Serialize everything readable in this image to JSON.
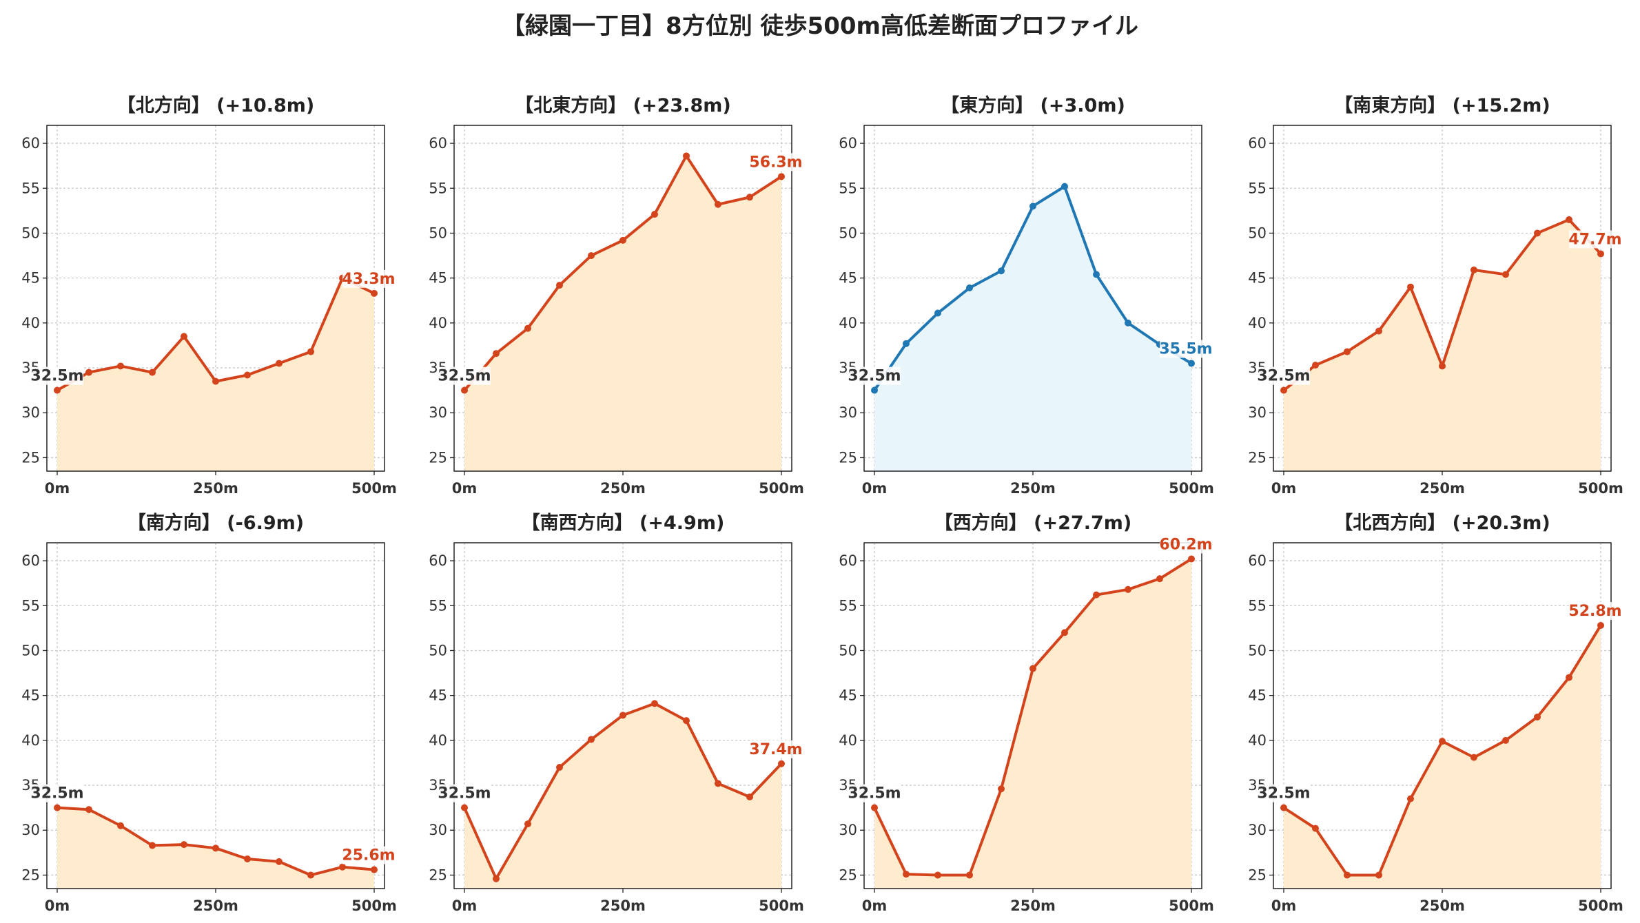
{
  "title": "【緑園一丁目】8方位別 徒歩500m高低差断面プロファイル",
  "colors": {
    "up_line": "#d4441c",
    "up_fill": "#ffeccf",
    "flat_line": "#1f77b4",
    "flat_fill": "#e8f5fb",
    "start_label": "#333333",
    "grid": "#c8c8c8"
  },
  "chart_data": [
    {
      "type": "area",
      "title": "【北方向】 (+10.8m)",
      "style": "up",
      "x": [
        0,
        50,
        100,
        150,
        200,
        250,
        300,
        350,
        400,
        450,
        500
      ],
      "values": [
        32.5,
        34.5,
        35.2,
        34.5,
        38.5,
        33.5,
        34.2,
        35.5,
        36.8,
        45.0,
        43.3
      ],
      "start_label": "32.5m",
      "end_label": "43.3m",
      "ylim": [
        23.5,
        62
      ],
      "yticks": [
        25,
        30,
        35,
        40,
        45,
        50,
        55,
        60
      ],
      "xticks": [
        0,
        250,
        500
      ],
      "xtick_labels": [
        "0m",
        "250m",
        "500m"
      ],
      "grid": true
    },
    {
      "type": "area",
      "title": "【北東方向】 (+23.8m)",
      "style": "up",
      "x": [
        0,
        50,
        100,
        150,
        200,
        250,
        300,
        350,
        400,
        450,
        500
      ],
      "values": [
        32.5,
        36.6,
        39.4,
        44.2,
        47.5,
        49.2,
        52.1,
        58.6,
        53.2,
        54.0,
        56.3
      ],
      "start_label": "32.5m",
      "end_label": "56.3m",
      "ylim": [
        23.5,
        62
      ],
      "yticks": [
        25,
        30,
        35,
        40,
        45,
        50,
        55,
        60
      ],
      "xticks": [
        0,
        250,
        500
      ],
      "xtick_labels": [
        "0m",
        "250m",
        "500m"
      ],
      "grid": true
    },
    {
      "type": "area",
      "title": "【東方向】 (+3.0m)",
      "style": "flat",
      "x": [
        0,
        50,
        100,
        150,
        200,
        250,
        300,
        350,
        400,
        450,
        500
      ],
      "values": [
        32.5,
        37.7,
        41.1,
        43.9,
        45.8,
        53.0,
        55.2,
        45.4,
        40.0,
        37.6,
        35.5
      ],
      "start_label": "32.5m",
      "end_label": "35.5m",
      "ylim": [
        23.5,
        62
      ],
      "yticks": [
        25,
        30,
        35,
        40,
        45,
        50,
        55,
        60
      ],
      "xticks": [
        0,
        250,
        500
      ],
      "xtick_labels": [
        "0m",
        "250m",
        "500m"
      ],
      "grid": true
    },
    {
      "type": "area",
      "title": "【南東方向】 (+15.2m)",
      "style": "up",
      "x": [
        0,
        50,
        100,
        150,
        200,
        250,
        300,
        350,
        400,
        450,
        500
      ],
      "values": [
        32.5,
        35.3,
        36.8,
        39.1,
        44.0,
        35.2,
        45.9,
        45.4,
        50.0,
        51.5,
        47.7
      ],
      "start_label": "32.5m",
      "end_label": "47.7m",
      "ylim": [
        23.5,
        62
      ],
      "yticks": [
        25,
        30,
        35,
        40,
        45,
        50,
        55,
        60
      ],
      "xticks": [
        0,
        250,
        500
      ],
      "xtick_labels": [
        "0m",
        "250m",
        "500m"
      ],
      "grid": true
    },
    {
      "type": "area",
      "title": "【南方向】 (-6.9m)",
      "style": "down",
      "x": [
        0,
        50,
        100,
        150,
        200,
        250,
        300,
        350,
        400,
        450,
        500
      ],
      "values": [
        32.5,
        32.3,
        30.5,
        28.3,
        28.4,
        28.0,
        26.8,
        26.5,
        25.0,
        25.9,
        25.6
      ],
      "start_label": "32.5m",
      "end_label": "25.6m",
      "ylim": [
        23.5,
        62
      ],
      "yticks": [
        25,
        30,
        35,
        40,
        45,
        50,
        55,
        60
      ],
      "xticks": [
        0,
        250,
        500
      ],
      "xtick_labels": [
        "0m",
        "250m",
        "500m"
      ],
      "grid": true
    },
    {
      "type": "area",
      "title": "【南西方向】 (+4.9m)",
      "style": "up",
      "x": [
        0,
        50,
        100,
        150,
        200,
        250,
        300,
        350,
        400,
        450,
        500
      ],
      "values": [
        32.5,
        24.6,
        30.7,
        37.0,
        40.1,
        42.8,
        44.1,
        42.2,
        35.2,
        33.7,
        37.4
      ],
      "start_label": "32.5m",
      "end_label": "37.4m",
      "ylim": [
        23.5,
        62
      ],
      "yticks": [
        25,
        30,
        35,
        40,
        45,
        50,
        55,
        60
      ],
      "xticks": [
        0,
        250,
        500
      ],
      "xtick_labels": [
        "0m",
        "250m",
        "500m"
      ],
      "grid": true
    },
    {
      "type": "area",
      "title": "【西方向】 (+27.7m)",
      "style": "up",
      "x": [
        0,
        50,
        100,
        150,
        200,
        250,
        300,
        350,
        400,
        450,
        500
      ],
      "values": [
        32.5,
        25.1,
        25.0,
        25.0,
        34.6,
        48.0,
        52.0,
        56.2,
        56.8,
        58.0,
        60.2
      ],
      "start_label": "32.5m",
      "end_label": "60.2m",
      "ylim": [
        23.5,
        62
      ],
      "yticks": [
        25,
        30,
        35,
        40,
        45,
        50,
        55,
        60
      ],
      "xticks": [
        0,
        250,
        500
      ],
      "xtick_labels": [
        "0m",
        "250m",
        "500m"
      ],
      "grid": true
    },
    {
      "type": "area",
      "title": "【北西方向】 (+20.3m)",
      "style": "up",
      "x": [
        0,
        50,
        100,
        150,
        200,
        250,
        300,
        350,
        400,
        450,
        500
      ],
      "values": [
        32.5,
        30.2,
        25.0,
        25.0,
        33.5,
        39.9,
        38.1,
        40.0,
        42.6,
        47.0,
        52.8
      ],
      "start_label": "32.5m",
      "end_label": "52.8m",
      "ylim": [
        23.5,
        62
      ],
      "yticks": [
        25,
        30,
        35,
        40,
        45,
        50,
        55,
        60
      ],
      "xticks": [
        0,
        250,
        500
      ],
      "xtick_labels": [
        "0m",
        "250m",
        "500m"
      ],
      "grid": true
    }
  ]
}
